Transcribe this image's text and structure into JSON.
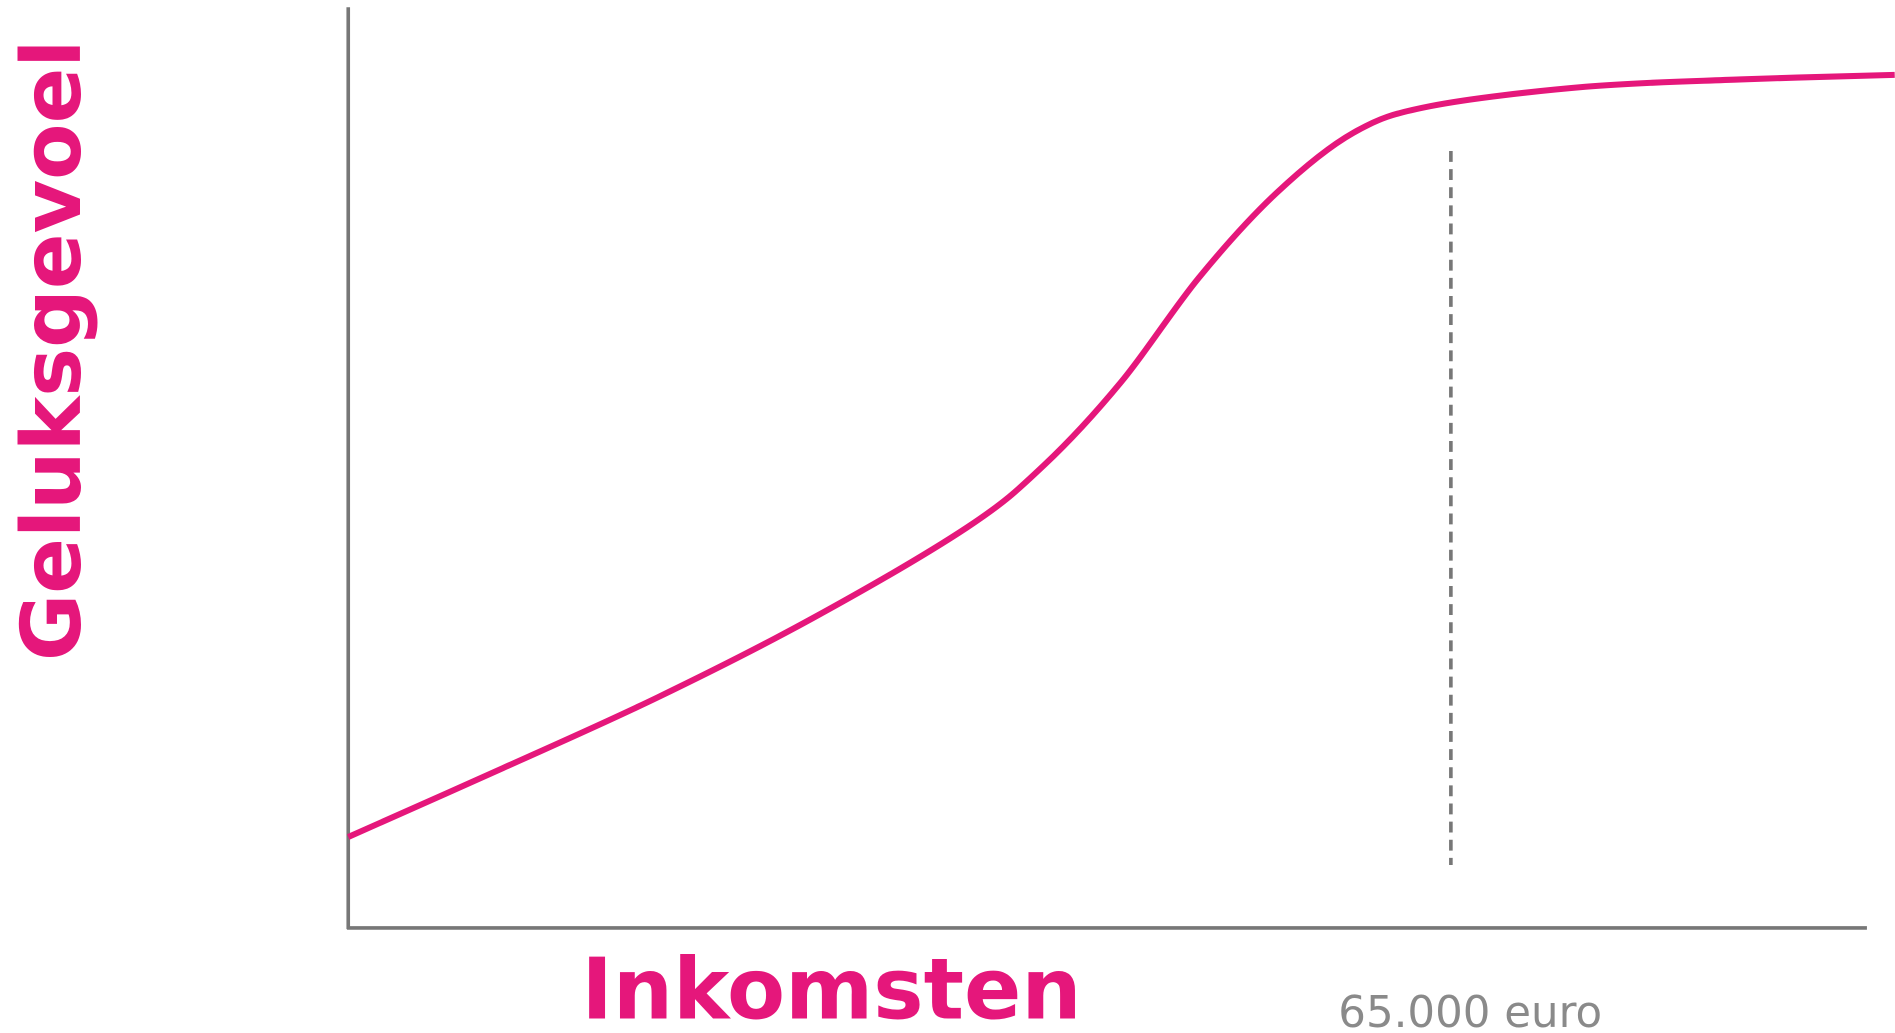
{
  "chart_data": {
    "type": "line",
    "xlabel": "Inkomsten",
    "ylabel": "Geluksgevoel",
    "x": [
      0,
      10,
      20,
      30,
      40,
      45,
      50,
      55,
      60,
      65,
      70,
      80,
      90,
      100
    ],
    "series": [
      {
        "color": "#e5177b",
        "values": [
          9.9,
          17.4,
          25.1,
          33.7,
          43.6,
          50.4,
          59.5,
          70.8,
          80,
          86.6,
          89.5,
          91.6,
          92.4,
          92.9
        ]
      }
    ],
    "xlim": [
      0,
      100
    ],
    "ylim": [
      0,
      100
    ],
    "reference_line": {
      "x": 71.3,
      "label": "65.000 euro",
      "color": "#777777"
    }
  }
}
